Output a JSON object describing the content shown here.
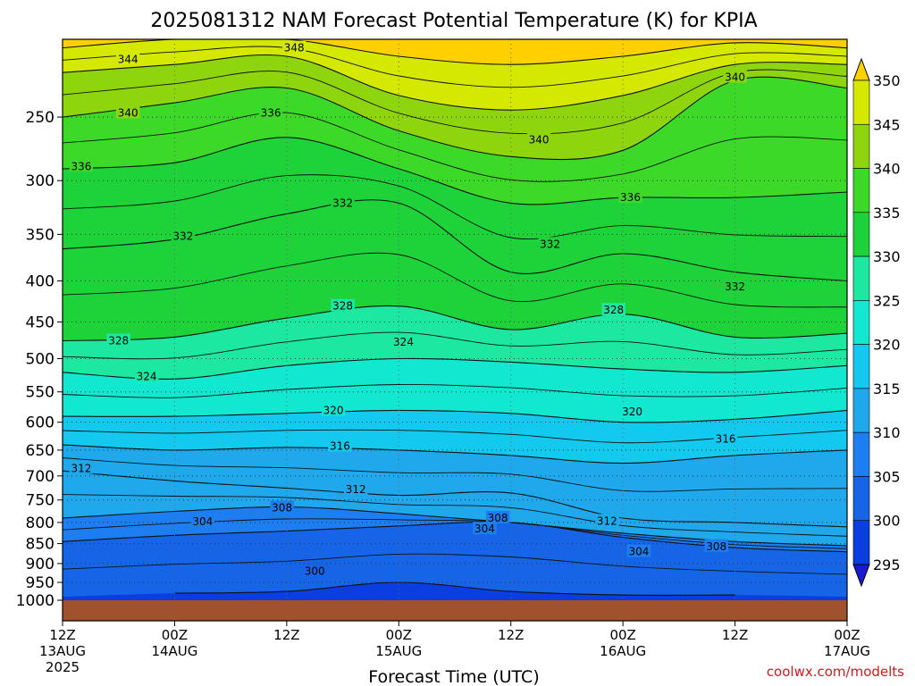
{
  "chart_data": {
    "type": "heatmap",
    "title": "2025081312 NAM Forecast Potential Temperature (K) for KPIA",
    "xlabel": "Forecast Time (UTC)",
    "ylabel": "",
    "y_axis": {
      "scale": "pressure (reversed)",
      "range_hPa": [
        1000,
        200
      ],
      "ticks": [
        "250",
        "300",
        "350",
        "400",
        "450",
        "500",
        "550",
        "600",
        "650",
        "700",
        "750",
        "800",
        "850",
        "900",
        "950",
        "1000"
      ]
    },
    "x_axis": {
      "range_hours": [
        0,
        84
      ],
      "ticks": [
        {
          "hour": 0,
          "l1": "12Z",
          "l2": "13AUG",
          "l3": "2025"
        },
        {
          "hour": 12,
          "l1": "00Z",
          "l2": "14AUG",
          "l3": ""
        },
        {
          "hour": 24,
          "l1": "12Z",
          "l2": "",
          "l3": ""
        },
        {
          "hour": 36,
          "l1": "00Z",
          "l2": "15AUG",
          "l3": ""
        },
        {
          "hour": 48,
          "l1": "12Z",
          "l2": "",
          "l3": ""
        },
        {
          "hour": 60,
          "l1": "00Z",
          "l2": "16AUG",
          "l3": ""
        },
        {
          "hour": 72,
          "l1": "12Z",
          "l2": "",
          "l3": ""
        },
        {
          "hour": 84,
          "l1": "00Z",
          "l2": "17AUG",
          "l3": ""
        }
      ]
    },
    "colorbar": {
      "levels": [
        295,
        300,
        305,
        310,
        315,
        320,
        325,
        330,
        335,
        340,
        345,
        350
      ],
      "labels": [
        "295",
        "300",
        "305",
        "310",
        "315",
        "320",
        "325",
        "330",
        "335",
        "340",
        "345",
        "350"
      ],
      "colors": [
        "#1a1ad0",
        "#0b3ee0",
        "#1665e6",
        "#1c7ef0",
        "#1fa9ec",
        "#13c9ee",
        "#12e8cf",
        "#1ce8a2",
        "#1ed23a",
        "#3cd928",
        "#8ed50e",
        "#d4e800",
        "#ffe800"
      ],
      "over_color": "#ffd000",
      "under_color": "#1a1ad0"
    },
    "isentropes": [
      {
        "theta": 300,
        "p_hPa": [
          null,
          980,
          975,
          950,
          975,
          985,
          985,
          null
        ]
      },
      {
        "theta": 304,
        "p_hPa": [
          845,
          830,
          820,
          808,
          800,
          835,
          860,
          870
        ]
      },
      {
        "theta": 308,
        "p_hPa": [
          790,
          775,
          765,
          780,
          800,
          825,
          845,
          855
        ]
      },
      {
        "theta": 312,
        "p_hPa": [
          690,
          710,
          725,
          740,
          735,
          790,
          800,
          810
        ]
      },
      {
        "theta": 316,
        "p_hPa": [
          640,
          650,
          645,
          650,
          660,
          675,
          660,
          650
        ]
      },
      {
        "theta": 320,
        "p_hPa": [
          590,
          590,
          585,
          580,
          585,
          600,
          595,
          580
        ]
      },
      {
        "theta": 324,
        "p_hPa": [
          520,
          530,
          510,
          500,
          505,
          515,
          520,
          510
        ]
      },
      {
        "theta": 328,
        "p_hPa": [
          475,
          470,
          445,
          430,
          460,
          440,
          470,
          465
        ]
      },
      {
        "theta": 332,
        "p_hPa": [
          365,
          355,
          330,
          320,
          390,
          370,
          390,
          400
        ]
      },
      {
        "theta": 336,
        "p_hPa": [
          290,
          285,
          265,
          290,
          320,
          315,
          315,
          310
        ]
      },
      {
        "theta": 340,
        "p_hPa": [
          250,
          240,
          230,
          260,
          280,
          275,
          225,
          230
        ]
      },
      {
        "theta": 344,
        "p_hPa": [
          220,
          215,
          210,
          235,
          245,
          235,
          215,
          215
        ]
      },
      {
        "theta": 348,
        "p_hPa": [
          205,
          200,
          200,
          210,
          215,
          210,
          202,
          205
        ]
      }
    ],
    "contour_labels": [
      {
        "text": "344",
        "hour": 7.0,
        "p": 212
      },
      {
        "text": "348",
        "hour": 24.8,
        "p": 205
      },
      {
        "text": "340",
        "hour": 7.0,
        "p": 247
      },
      {
        "text": "336",
        "hour": 22.3,
        "p": 247
      },
      {
        "text": "340",
        "hour": 51.0,
        "p": 267
      },
      {
        "text": "340",
        "hour": 72.0,
        "p": 223
      },
      {
        "text": "336",
        "hour": 2.0,
        "p": 288
      },
      {
        "text": "336",
        "hour": 60.8,
        "p": 315
      },
      {
        "text": "332",
        "hour": 30.0,
        "p": 320
      },
      {
        "text": "332",
        "hour": 12.9,
        "p": 352
      },
      {
        "text": "332",
        "hour": 52.2,
        "p": 360
      },
      {
        "text": "332",
        "hour": 72.0,
        "p": 407
      },
      {
        "text": "328",
        "hour": 30.0,
        "p": 430
      },
      {
        "text": "328",
        "hour": 59.0,
        "p": 435
      },
      {
        "text": "328",
        "hour": 6.0,
        "p": 475
      },
      {
        "text": "324",
        "hour": 36.5,
        "p": 477
      },
      {
        "text": "324",
        "hour": 9.0,
        "p": 526
      },
      {
        "text": "320",
        "hour": 29.0,
        "p": 580
      },
      {
        "text": "320",
        "hour": 61.0,
        "p": 582
      },
      {
        "text": "316",
        "hour": 29.7,
        "p": 643
      },
      {
        "text": "316",
        "hour": 71.0,
        "p": 630
      },
      {
        "text": "312",
        "hour": 2.0,
        "p": 685
      },
      {
        "text": "312",
        "hour": 31.4,
        "p": 728
      },
      {
        "text": "312",
        "hour": 58.3,
        "p": 797
      },
      {
        "text": "308",
        "hour": 23.5,
        "p": 767
      },
      {
        "text": "308",
        "hour": 46.6,
        "p": 790
      },
      {
        "text": "308",
        "hour": 70.0,
        "p": 857
      },
      {
        "text": "304",
        "hour": 15.0,
        "p": 798
      },
      {
        "text": "304",
        "hour": 45.2,
        "p": 815
      },
      {
        "text": "304",
        "hour": 61.7,
        "p": 870
      },
      {
        "text": "300",
        "hour": 27.0,
        "p": 920
      }
    ],
    "credit": "coolwx.com/modelts"
  }
}
